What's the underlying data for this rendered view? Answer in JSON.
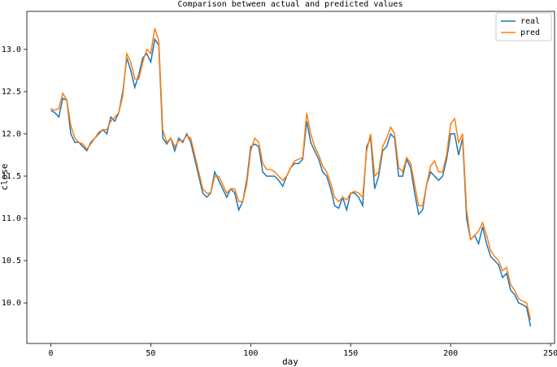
{
  "chart_data": {
    "type": "line",
    "title": "Comparison between actual and predicted values",
    "x_label": "day",
    "y_label": "close",
    "x": [
      0,
      2,
      4,
      6,
      8,
      10,
      12,
      14,
      16,
      18,
      20,
      22,
      24,
      26,
      28,
      30,
      32,
      34,
      36,
      38,
      40,
      42,
      44,
      46,
      48,
      50,
      52,
      54,
      56,
      58,
      60,
      62,
      64,
      66,
      68,
      70,
      72,
      74,
      76,
      78,
      80,
      82,
      84,
      86,
      88,
      90,
      92,
      94,
      96,
      98,
      100,
      102,
      104,
      106,
      108,
      110,
      112,
      114,
      116,
      118,
      120,
      122,
      124,
      126,
      128,
      130,
      132,
      134,
      136,
      138,
      140,
      142,
      144,
      146,
      148,
      150,
      152,
      154,
      156,
      158,
      160,
      162,
      164,
      166,
      168,
      170,
      172,
      174,
      176,
      178,
      180,
      182,
      184,
      186,
      188,
      190,
      192,
      194,
      196,
      198,
      200,
      202,
      204,
      206,
      208,
      210,
      212,
      214,
      216,
      218,
      220,
      222,
      224,
      226,
      228,
      230,
      232,
      234,
      236,
      238,
      240
    ],
    "series": [
      {
        "name": "real",
        "color": "#1f77b4",
        "values": [
          12.28,
          12.25,
          12.2,
          12.42,
          12.4,
          12.0,
          11.9,
          11.9,
          11.85,
          11.8,
          11.9,
          11.95,
          12.0,
          12.05,
          12.0,
          12.2,
          12.15,
          12.25,
          12.5,
          12.9,
          12.75,
          12.55,
          12.7,
          12.9,
          12.95,
          12.85,
          13.12,
          13.05,
          11.95,
          11.88,
          11.95,
          11.8,
          11.95,
          11.9,
          12.0,
          11.9,
          11.7,
          11.5,
          11.3,
          11.25,
          11.3,
          11.55,
          11.45,
          11.35,
          11.25,
          11.35,
          11.3,
          11.1,
          11.2,
          11.45,
          11.85,
          11.88,
          11.85,
          11.55,
          11.5,
          11.5,
          11.5,
          11.45,
          11.38,
          11.5,
          11.6,
          11.65,
          11.65,
          11.7,
          12.15,
          11.9,
          11.8,
          11.7,
          11.55,
          11.5,
          11.35,
          11.15,
          11.12,
          11.25,
          11.1,
          11.3,
          11.3,
          11.25,
          11.15,
          11.85,
          11.95,
          11.35,
          11.5,
          11.8,
          11.85,
          12.0,
          11.95,
          11.5,
          11.5,
          11.7,
          11.6,
          11.3,
          11.05,
          11.1,
          11.4,
          11.55,
          11.5,
          11.45,
          11.5,
          11.7,
          12.0,
          12.0,
          11.75,
          11.95,
          11.0,
          10.75,
          10.8,
          10.7,
          10.9,
          10.7,
          10.55,
          10.5,
          10.45,
          10.3,
          10.35,
          10.15,
          10.1,
          10.0,
          9.98,
          9.95,
          9.72
        ]
      },
      {
        "name": "pred",
        "color": "#ff7f0e",
        "values": [
          12.3,
          12.28,
          12.3,
          12.48,
          12.4,
          12.1,
          11.95,
          11.9,
          11.88,
          11.82,
          11.88,
          11.95,
          12.02,
          12.05,
          12.05,
          12.15,
          12.2,
          12.25,
          12.45,
          12.95,
          12.85,
          12.65,
          12.65,
          12.85,
          13.0,
          12.95,
          13.25,
          13.1,
          12.05,
          11.9,
          11.95,
          11.85,
          11.92,
          11.92,
          11.98,
          11.95,
          11.75,
          11.55,
          11.35,
          11.3,
          11.3,
          11.5,
          11.5,
          11.4,
          11.3,
          11.35,
          11.35,
          11.2,
          11.2,
          11.4,
          11.8,
          11.95,
          11.9,
          11.65,
          11.58,
          11.58,
          11.55,
          11.5,
          11.45,
          11.5,
          11.6,
          11.68,
          11.7,
          11.72,
          12.25,
          12.0,
          11.85,
          11.75,
          11.62,
          11.55,
          11.42,
          11.25,
          11.2,
          11.25,
          11.22,
          11.3,
          11.32,
          11.3,
          11.25,
          11.8,
          12.0,
          11.5,
          11.55,
          11.85,
          11.95,
          12.08,
          12.0,
          11.6,
          11.55,
          11.72,
          11.65,
          11.4,
          11.15,
          11.15,
          11.4,
          11.62,
          11.68,
          11.55,
          11.55,
          11.75,
          12.12,
          12.18,
          11.9,
          12.0,
          11.1,
          10.75,
          10.8,
          10.85,
          10.95,
          10.8,
          10.62,
          10.55,
          10.5,
          10.38,
          10.42,
          10.22,
          10.15,
          10.05,
          10.02,
          10.0,
          9.8
        ]
      }
    ],
    "xlim": [
      -12,
      252
    ],
    "ylim": [
      9.52,
      13.45
    ],
    "xticks": [
      0,
      50,
      100,
      150,
      200,
      250
    ],
    "yticks": [
      {
        "value": 10,
        "label": "10.0"
      },
      10.5,
      {
        "value": 11,
        "label": "11.0"
      },
      11.5,
      {
        "value": 12,
        "label": "12.0"
      },
      12.5,
      {
        "value": 13,
        "label": "13.0"
      }
    ],
    "legend": "upper right"
  }
}
